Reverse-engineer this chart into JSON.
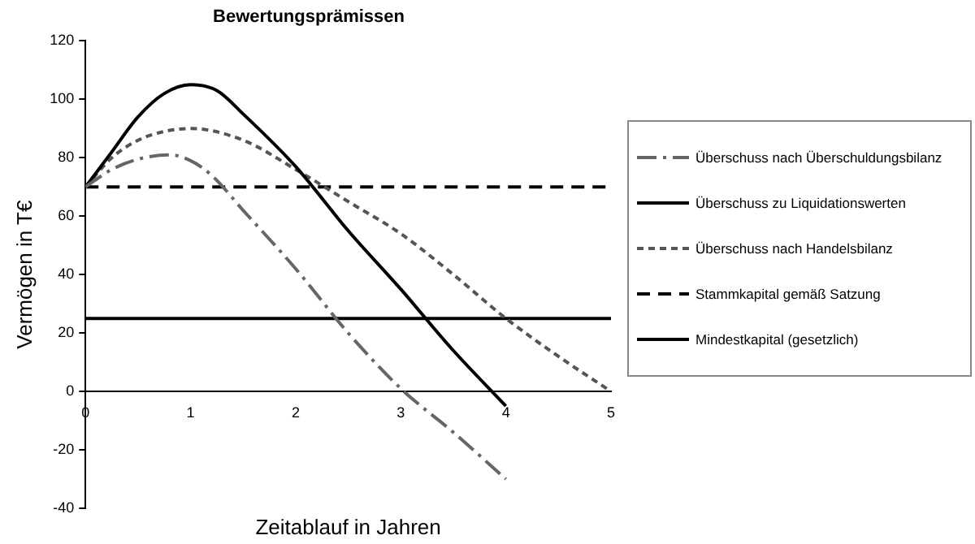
{
  "chart_data": {
    "type": "line",
    "title": "Bewertungsprämissen",
    "xlabel": "Zeitablauf in Jahren",
    "ylabel": "Vermögen in T€",
    "xlim": [
      0,
      5
    ],
    "xticks": [
      0,
      1,
      2,
      3,
      4,
      5
    ],
    "ylim": [
      -40,
      120
    ],
    "yticks": [
      -40,
      -20,
      0,
      20,
      40,
      60,
      80,
      100,
      120
    ],
    "grid": false,
    "legend": "right",
    "marker": "none",
    "series": [
      {
        "name": "Überschuss nach Überschuldungsbilanz",
        "color": "#666666",
        "line_style": "dashdot",
        "x": [
          0,
          0.25,
          0.5,
          0.8,
          1,
          1.2,
          1.5,
          2,
          2.5,
          3,
          3.5,
          4
        ],
        "values": [
          70,
          76,
          79.5,
          81,
          79,
          74,
          62,
          42,
          20,
          1,
          -14,
          -30
        ]
      },
      {
        "name": "Überschuss zu Liquidationswerten",
        "color": "#000000",
        "line_style": "solid",
        "x": [
          0,
          0.25,
          0.5,
          0.75,
          1,
          1.25,
          1.5,
          2,
          2.5,
          3,
          3.5,
          4
        ],
        "values": [
          70,
          82,
          94,
          102,
          105,
          103,
          95,
          77,
          55,
          35,
          14,
          -5
        ]
      },
      {
        "name": "Überschuss nach Handelsbilanz",
        "color": "#555555",
        "line_style": "dotted",
        "x": [
          0,
          0.25,
          0.5,
          0.75,
          1,
          1.5,
          2,
          2.5,
          3,
          3.5,
          4,
          4.5,
          5
        ],
        "values": [
          70,
          80,
          86,
          89,
          90,
          86,
          76,
          65,
          54,
          40,
          25,
          12,
          0
        ]
      },
      {
        "name": "Stammkapital gemäß Satzung",
        "color": "#000000",
        "line_style": "dashed",
        "x": [
          0,
          5
        ],
        "values": [
          70,
          70
        ]
      },
      {
        "name": "Mindestkapital (gesetzlich)",
        "color": "#000000",
        "line_style": "solid",
        "x": [
          0,
          5
        ],
        "values": [
          25,
          25
        ]
      }
    ]
  }
}
